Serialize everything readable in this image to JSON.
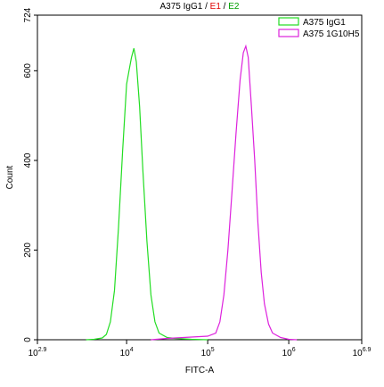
{
  "chart_data": {
    "type": "histogram-lines",
    "title_parts": [
      {
        "text": "A375 IgG1",
        "color": "#000000"
      },
      {
        "text": " / ",
        "color": "#000000"
      },
      {
        "text": "E1",
        "color": "#e00000"
      },
      {
        "text": " / ",
        "color": "#000000"
      },
      {
        "text": "E2",
        "color": "#00a000"
      }
    ],
    "x_label": "FITC-A",
    "y_label": "Count",
    "log_base": "10",
    "xscale": "log",
    "xlim": [
      2.9,
      6.9
    ],
    "xticks": [
      2.9,
      4,
      5,
      6,
      6.9
    ],
    "ylim": [
      0,
      724
    ],
    "yticks": [
      0,
      200,
      400,
      600,
      724
    ],
    "legend": "upper right",
    "series": [
      {
        "name": "A375 IgG1",
        "color": "#22dd22",
        "x": [
          3.5,
          3.6,
          3.7,
          3.75,
          3.8,
          3.85,
          3.9,
          3.95,
          4.0,
          4.03,
          4.06,
          4.09,
          4.12,
          4.16,
          4.2,
          4.25,
          4.3,
          4.35,
          4.4,
          4.5,
          4.6,
          4.8,
          5.0
        ],
        "values": [
          0,
          1,
          4,
          12,
          40,
          110,
          250,
          420,
          570,
          600,
          630,
          650,
          620,
          520,
          380,
          220,
          100,
          40,
          15,
          5,
          3,
          1,
          0
        ]
      },
      {
        "name": "A375 1G10H5",
        "color": "#dd22dd",
        "x": [
          4.3,
          4.5,
          4.8,
          5.0,
          5.1,
          5.15,
          5.2,
          5.25,
          5.3,
          5.35,
          5.4,
          5.44,
          5.47,
          5.5,
          5.54,
          5.58,
          5.62,
          5.66,
          5.7,
          5.75,
          5.8,
          5.9,
          6.0,
          6.1
        ],
        "values": [
          0,
          3,
          6,
          8,
          15,
          40,
          100,
          200,
          330,
          460,
          580,
          640,
          655,
          630,
          520,
          400,
          260,
          150,
          80,
          35,
          15,
          5,
          1,
          0
        ]
      }
    ]
  }
}
